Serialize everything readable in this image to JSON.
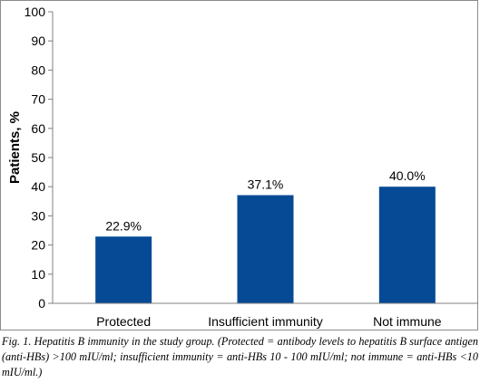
{
  "chart_data": {
    "type": "bar",
    "categories": [
      "Protected",
      "Insufficient immunity",
      "Not immune"
    ],
    "values": [
      22.9,
      37.1,
      40.0
    ],
    "data_labels": [
      "22.9%",
      "37.1%",
      "40.0%"
    ],
    "ylabel": "Patients, %",
    "ylim": [
      0,
      100
    ],
    "yticks": [
      0,
      10,
      20,
      30,
      40,
      50,
      60,
      70,
      80,
      90,
      100
    ],
    "grid": false,
    "legend": "none",
    "bar_color": "#064a96"
  },
  "caption": {
    "text": "Fig. 1. Hepatitis B immunity in the study group. (Protected = antibody levels to hepatitis B surface antigen (anti-HBs) >100 mIU/ml; insufficient immunity = anti-HBs 10 - 100 mIU/ml; not immune = anti-HBs <10 mIU/ml.)"
  }
}
